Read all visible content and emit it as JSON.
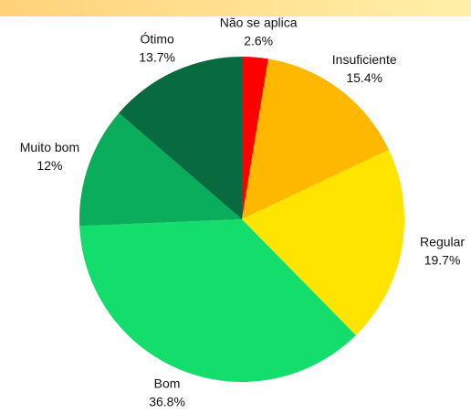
{
  "chart_data": {
    "type": "pie",
    "categories": [
      "Não se aplica",
      "Insuficiente",
      "Regular",
      "Bom",
      "Muito bom",
      "Ótimo"
    ],
    "values": [
      2.6,
      15.4,
      19.7,
      36.8,
      12,
      13.7
    ],
    "value_labels": [
      "2.6%",
      "15.4%",
      "19.7%",
      "36.8%",
      "12%",
      "13.7%"
    ],
    "colors": [
      "#ff0000",
      "#ffb800",
      "#ffe400",
      "#13de6b",
      "#0aae5a",
      "#086b40"
    ]
  }
}
